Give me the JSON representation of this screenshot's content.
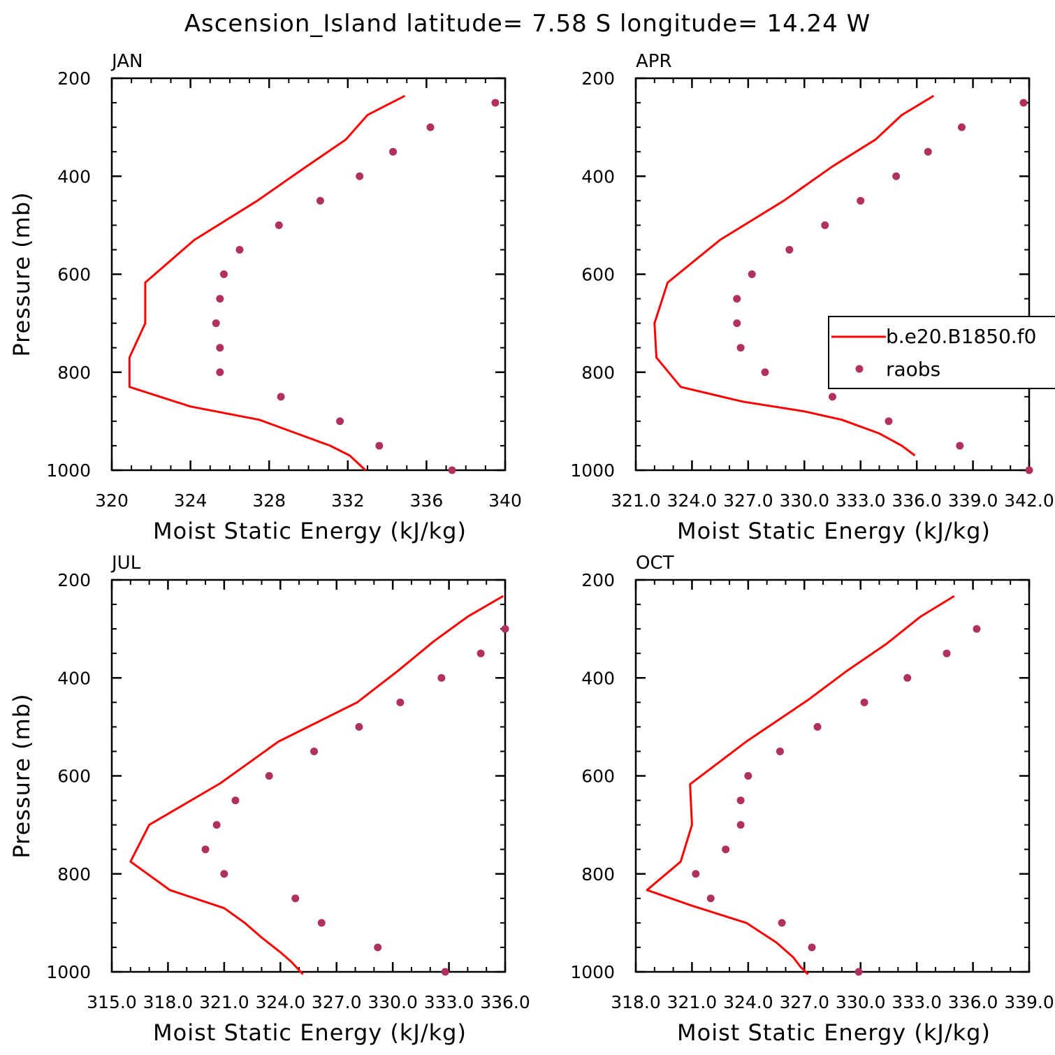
{
  "title": "Ascension_Island  latitude= 7.58 S longitude= 14.24 W",
  "colors": {
    "model_line": "#ff0000",
    "raobs_marker": "#b03060",
    "axes": "#000000"
  },
  "legend": {
    "panel": 1,
    "entries": [
      {
        "label": "b.e20.B1850.f0",
        "kind": "line",
        "color": "#ff0000"
      },
      {
        "label": "raobs",
        "kind": "marker",
        "color": "#b03060"
      }
    ]
  },
  "chart_data": [
    {
      "type": "line+scatter",
      "panel_title": "JAN",
      "xlabel": "Moist Static Energy (kJ/kg)",
      "ylabel": "Pressure (mb)",
      "xlim": [
        320,
        340
      ],
      "ylim": [
        1000,
        200
      ],
      "y_axis_inverted": true,
      "x_major_ticks": [
        320,
        324,
        328,
        332,
        336,
        340
      ],
      "x_tick_labels": [
        "320",
        "324",
        "328",
        "332",
        "336",
        "340"
      ],
      "x_minor_step": 1,
      "y_major_ticks": [
        200,
        400,
        600,
        800,
        1000
      ],
      "y_tick_labels": [
        "200",
        "400",
        "600",
        "800",
        "1000"
      ],
      "y_minor_step": 50,
      "series": [
        {
          "name": "b.e20.B1850.f0",
          "kind": "line",
          "x": [
            334.9,
            333.0,
            331.9,
            329.9,
            327.4,
            324.2,
            321.7,
            321.7,
            320.9,
            320.9,
            324.0,
            327.5,
            329.4,
            331.1,
            332.1,
            332.9
          ],
          "y": [
            236,
            275,
            325,
            380,
            450,
            530,
            617,
            700,
            770,
            830,
            870,
            897,
            925,
            950,
            970,
            1000
          ]
        },
        {
          "name": "raobs",
          "kind": "scatter",
          "x": [
            339.5,
            336.2,
            334.3,
            332.6,
            330.6,
            328.5,
            326.5,
            325.7,
            325.5,
            325.3,
            325.5,
            325.5,
            328.6,
            331.6,
            333.6,
            337.3
          ],
          "y": [
            250,
            300,
            350,
            400,
            450,
            500,
            550,
            600,
            650,
            700,
            750,
            800,
            850,
            900,
            950,
            1000
          ]
        }
      ]
    },
    {
      "type": "line+scatter",
      "panel_title": "APR",
      "xlabel": "Moist Static Energy (kJ/kg)",
      "ylabel": "",
      "xlim": [
        321.0,
        342.0
      ],
      "ylim": [
        1000,
        200
      ],
      "y_axis_inverted": true,
      "x_major_ticks": [
        321.0,
        324.0,
        327.0,
        330.0,
        333.0,
        336.0,
        339.0,
        342.0
      ],
      "x_tick_labels": [
        "321.0",
        "324.0",
        "327.0",
        "330.0",
        "333.0",
        "336.0",
        "339.0",
        "342.0"
      ],
      "x_minor_step": 1,
      "y_major_ticks": [
        200,
        400,
        600,
        800,
        1000
      ],
      "y_tick_labels": [
        "200",
        "400",
        "600",
        "800",
        "1000"
      ],
      "y_minor_step": 50,
      "series": [
        {
          "name": "b.e20.B1850.f0",
          "kind": "line",
          "x": [
            336.9,
            335.2,
            333.8,
            331.5,
            328.9,
            325.5,
            322.7,
            322.0,
            322.1,
            323.4,
            326.7,
            330.0,
            332.0,
            334.0,
            335.2,
            335.9
          ],
          "y": [
            236,
            275,
            325,
            380,
            450,
            530,
            617,
            700,
            770,
            830,
            860,
            880,
            897,
            925,
            950,
            970
          ]
        },
        {
          "name": "raobs",
          "kind": "scatter",
          "x": [
            341.7,
            338.4,
            336.6,
            334.9,
            333.0,
            331.1,
            329.2,
            327.2,
            326.4,
            326.4,
            326.6,
            327.9,
            331.5,
            334.5,
            338.3,
            342.0
          ],
          "y": [
            250,
            300,
            350,
            400,
            450,
            500,
            550,
            600,
            650,
            700,
            750,
            800,
            850,
            900,
            950,
            1000
          ]
        }
      ]
    },
    {
      "type": "line+scatter",
      "panel_title": "JUL",
      "xlabel": "Moist Static Energy (kJ/kg)",
      "ylabel": "Pressure (mb)",
      "xlim": [
        315.0,
        336.0
      ],
      "ylim": [
        1000,
        200
      ],
      "y_axis_inverted": true,
      "x_major_ticks": [
        315.0,
        318.0,
        321.0,
        324.0,
        327.0,
        330.0,
        333.0,
        336.0
      ],
      "x_tick_labels": [
        "315.0",
        "318.0",
        "321.0",
        "324.0",
        "327.0",
        "330.0",
        "333.0",
        "336.0"
      ],
      "x_minor_step": 1,
      "y_major_ticks": [
        200,
        400,
        600,
        800,
        1000
      ],
      "y_tick_labels": [
        "200",
        "400",
        "600",
        "800",
        "1000"
      ],
      "y_minor_step": 50,
      "series": [
        {
          "name": "b.e20.B1850.f0",
          "kind": "line",
          "x": [
            335.9,
            334.0,
            332.2,
            330.3,
            328.1,
            323.9,
            320.8,
            317.0,
            316.0,
            318.1,
            321.0,
            322.1,
            323.0,
            324.0,
            324.6,
            325.2
          ],
          "y": [
            233,
            275,
            325,
            385,
            450,
            530,
            615,
            700,
            775,
            833,
            870,
            900,
            930,
            960,
            980,
            1005
          ]
        },
        {
          "name": "raobs",
          "kind": "scatter",
          "x": [
            336.0,
            334.7,
            332.6,
            330.4,
            328.2,
            325.8,
            323.4,
            321.6,
            320.6,
            320.0,
            321.0,
            324.8,
            326.2,
            329.2,
            332.8
          ],
          "y": [
            300,
            350,
            400,
            450,
            500,
            550,
            600,
            650,
            700,
            750,
            800,
            850,
            900,
            950,
            1000
          ]
        }
      ]
    },
    {
      "type": "line+scatter",
      "panel_title": "OCT",
      "xlabel": "Moist Static Energy (kJ/kg)",
      "ylabel": "",
      "xlim": [
        318.0,
        339.0
      ],
      "ylim": [
        1000,
        200
      ],
      "y_axis_inverted": true,
      "x_major_ticks": [
        318.0,
        321.0,
        324.0,
        327.0,
        330.0,
        333.0,
        336.0,
        339.0
      ],
      "x_tick_labels": [
        "318.0",
        "321.0",
        "324.0",
        "327.0",
        "330.0",
        "333.0",
        "336.0",
        "339.0"
      ],
      "x_minor_step": 1,
      "y_major_ticks": [
        200,
        400,
        600,
        800,
        1000
      ],
      "y_tick_labels": [
        "200",
        "400",
        "600",
        "800",
        "1000"
      ],
      "y_minor_step": 50,
      "series": [
        {
          "name": "b.e20.B1850.f0",
          "kind": "line",
          "x": [
            335.0,
            333.2,
            331.4,
            329.3,
            327.2,
            323.9,
            320.9,
            321.0,
            320.4,
            318.6,
            321.0,
            323.9,
            325.5,
            326.4,
            326.8,
            327.2
          ],
          "y": [
            233,
            275,
            330,
            385,
            445,
            530,
            617,
            700,
            775,
            833,
            865,
            900,
            940,
            970,
            990,
            1005
          ]
        },
        {
          "name": "raobs",
          "kind": "scatter",
          "x": [
            336.2,
            334.6,
            332.5,
            330.2,
            327.7,
            325.7,
            324.0,
            323.6,
            323.6,
            322.8,
            321.2,
            322.0,
            325.8,
            327.4,
            329.9
          ],
          "y": [
            300,
            350,
            400,
            450,
            500,
            550,
            600,
            650,
            700,
            750,
            800,
            850,
            900,
            950,
            1000
          ]
        }
      ]
    }
  ]
}
